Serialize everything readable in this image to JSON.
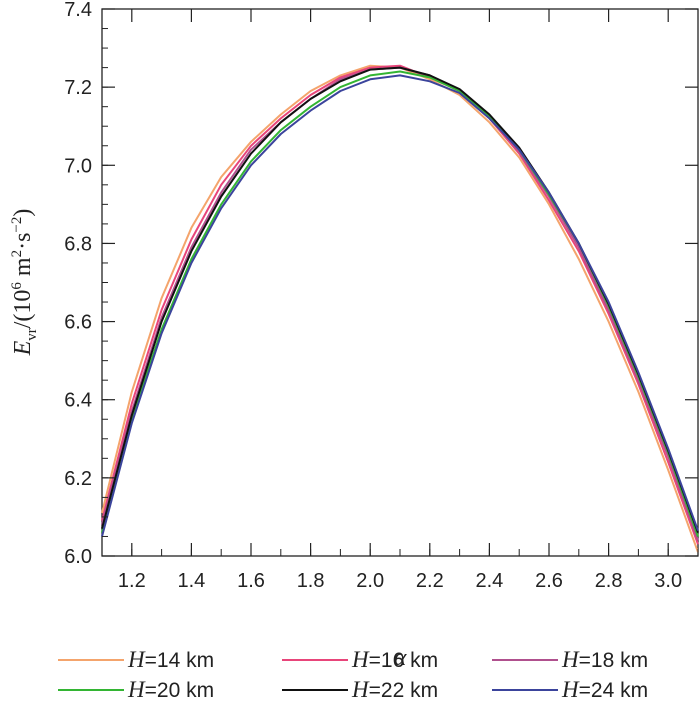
{
  "chart_data": {
    "type": "line",
    "xlabel": "α",
    "ylabel": {
      "symbol": "E",
      "subscript": "vr",
      "unit_prefix": "/(10",
      "exponent": "6",
      "unit_mid": " m",
      "unit_exp1": "2",
      "unit_dot": "·s",
      "unit_exp2": "−2",
      "unit_close": ")"
    },
    "xlim": [
      1.1,
      3.1
    ],
    "ylim": [
      6.0,
      7.4
    ],
    "xticks": [
      "1.2",
      "1.4",
      "1.6",
      "1.8",
      "2.0",
      "2.2",
      "2.4",
      "2.6",
      "2.8",
      "3.0"
    ],
    "yticks": [
      "6.0",
      "6.2",
      "6.4",
      "6.6",
      "6.8",
      "7.0",
      "7.2",
      "7.4"
    ],
    "x": [
      1.1,
      1.2,
      1.3,
      1.4,
      1.5,
      1.6,
      1.7,
      1.8,
      1.9,
      2.0,
      2.1,
      2.2,
      2.3,
      2.4,
      2.5,
      2.6,
      2.7,
      2.8,
      2.9,
      3.0,
      3.1
    ],
    "series": [
      {
        "legend": "H",
        "value": "14 km",
        "color": "#f4a46c",
        "values": [
          6.11,
          6.42,
          6.66,
          6.84,
          6.97,
          7.06,
          7.13,
          7.19,
          7.23,
          7.255,
          7.25,
          7.22,
          7.18,
          7.11,
          7.02,
          6.9,
          6.76,
          6.6,
          6.42,
          6.22,
          6.01
        ]
      },
      {
        "legend": "H",
        "value": "16 km",
        "color": "#e8457a",
        "values": [
          6.09,
          6.39,
          6.63,
          6.81,
          6.95,
          7.05,
          7.12,
          7.18,
          7.225,
          7.25,
          7.255,
          7.225,
          7.19,
          7.12,
          7.03,
          6.91,
          6.78,
          6.62,
          6.44,
          6.24,
          6.03
        ]
      },
      {
        "legend": "H",
        "value": "18 km",
        "color": "#b0508e",
        "values": [
          6.08,
          6.37,
          6.61,
          6.79,
          6.93,
          7.04,
          7.11,
          7.17,
          7.22,
          7.245,
          7.25,
          7.23,
          7.19,
          7.125,
          7.035,
          6.92,
          6.79,
          6.63,
          6.45,
          6.255,
          6.04
        ]
      },
      {
        "legend": "H",
        "value": "20 km",
        "color": "#33b533",
        "values": [
          6.06,
          6.35,
          6.58,
          6.76,
          6.9,
          7.01,
          7.09,
          7.15,
          7.2,
          7.23,
          7.24,
          7.225,
          7.19,
          7.125,
          7.04,
          6.925,
          6.8,
          6.64,
          6.46,
          6.265,
          6.05
        ]
      },
      {
        "legend": "H",
        "value": "22 km",
        "color": "#111111",
        "values": [
          6.07,
          6.36,
          6.6,
          6.78,
          6.92,
          7.03,
          7.11,
          7.17,
          7.215,
          7.245,
          7.25,
          7.23,
          7.195,
          7.13,
          7.045,
          6.93,
          6.8,
          6.645,
          6.465,
          6.27,
          6.06
        ]
      },
      {
        "legend": "H",
        "value": "24 km",
        "color": "#3b449c",
        "values": [
          6.05,
          6.34,
          6.57,
          6.75,
          6.89,
          7.0,
          7.08,
          7.14,
          7.19,
          7.22,
          7.23,
          7.215,
          7.185,
          7.12,
          7.04,
          6.93,
          6.8,
          6.65,
          6.47,
          6.275,
          6.065
        ]
      }
    ],
    "legend_position": "bottom",
    "grid": false
  }
}
